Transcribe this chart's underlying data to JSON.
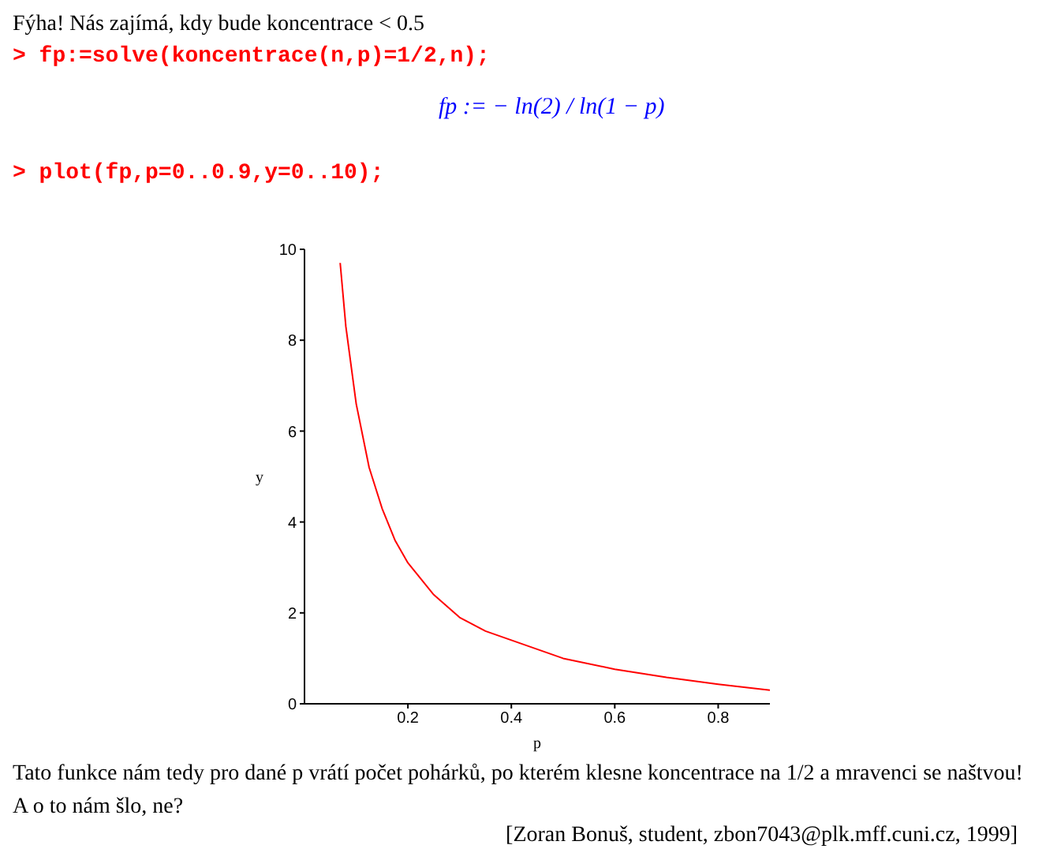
{
  "chart_data": {
    "type": "line",
    "title": "Fýha! Nás zajímá, kdy bude koncentrace < 0.5",
    "xlabel": "p",
    "ylabel": "y",
    "x": [
      0.069,
      0.08,
      0.1,
      0.125,
      0.15,
      0.175,
      0.2,
      0.25,
      0.3,
      0.35,
      0.4,
      0.45,
      0.5,
      0.6,
      0.7,
      0.8,
      0.9
    ],
    "series": [
      {
        "color": "#ff0000",
        "values": [
          9.7,
          8.3,
          6.6,
          5.2,
          4.3,
          3.6,
          3.1,
          2.4,
          1.9,
          1.6,
          1.4,
          1.2,
          1.0,
          0.76,
          0.58,
          0.43,
          0.3
        ]
      }
    ],
    "xlim": [
      0,
      0.9
    ],
    "xticks": [
      0.2,
      0.4,
      0.6,
      0.8
    ],
    "ylim": [
      0,
      10
    ],
    "yticks": [
      0,
      2,
      4,
      6,
      8,
      10
    ],
    "grid": false,
    "legend": false,
    "marker": "none",
    "line_style": "solid",
    "annotations": [
      "> fp:=solve(koncentrace(n,p)=1/2,n);",
      "fp := − ln(2) / ln(1 − p)",
      "> plot(fp,p=0..0.9,y=0..10);",
      "Tato funkce nám tedy pro dané p vrátí počet pohárků, po kterém klesne koncentrace na 1/2 a mravenci se naštvou! A o to nám šlo, ne?",
      "[Zoran Bonuš, student, zbon7043@plk.mff.cuni.cz, 1999]"
    ]
  }
}
